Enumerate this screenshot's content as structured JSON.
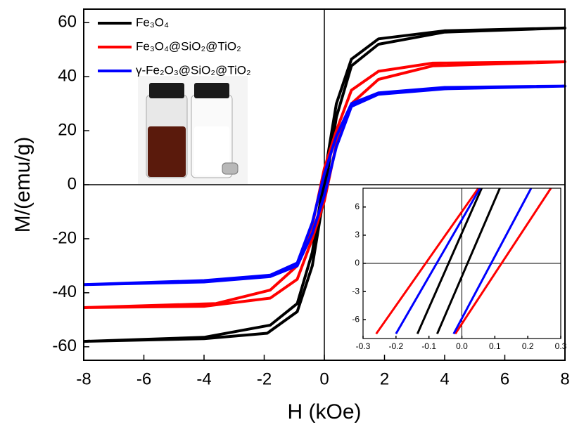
{
  "chart_data": [
    {
      "type": "line",
      "x_label": "H (kOe)",
      "y_label": "M/(emu/g)",
      "xlim": [
        -8,
        8
      ],
      "ylim": [
        -65,
        65
      ],
      "xticks": [
        -8,
        -6,
        -4,
        -2,
        0,
        2,
        4,
        6,
        8
      ],
      "yticks": [
        -60,
        -40,
        -20,
        0,
        20,
        40,
        60
      ],
      "zero_lines": true,
      "legend": "upper left",
      "series": [
        {
          "name": "Fe₃O₄",
          "color": "#000000",
          "x": [
            -8,
            -4,
            -1.9,
            -0.9,
            -0.4,
            0,
            0.4,
            0.9,
            1.8,
            4,
            8,
            4,
            1.8,
            0.9,
            0.4,
            0,
            -0.4,
            -0.9,
            -1.8,
            -4,
            -8
          ],
          "values": [
            -58,
            -57,
            -55,
            -47,
            -30,
            -3,
            25,
            44,
            52,
            56.5,
            58,
            57,
            54,
            46.5,
            30,
            3,
            -25,
            -44,
            -52,
            -56.5,
            -58
          ]
        },
        {
          "name": "Fe₃O₄@SiO₂@TiO₂",
          "color": "#ff0000",
          "x": [
            -8,
            -4,
            -1.8,
            -0.9,
            -0.4,
            0,
            0.4,
            0.9,
            1.8,
            3.6,
            8,
            3.6,
            1.8,
            0.9,
            0.4,
            0,
            -0.4,
            -0.9,
            -1.8,
            -3.6,
            -8
          ],
          "values": [
            -45.5,
            -45,
            -42,
            -35,
            -20,
            -6,
            15,
            30,
            39,
            44,
            45.5,
            45,
            42,
            35,
            20,
            6,
            -15,
            -30,
            -39,
            -44,
            -45.5
          ]
        },
        {
          "name": "γ-Fe₂O₃@SiO₂@TiO₂",
          "color": "#0000ff",
          "x": [
            -8,
            -4,
            -1.8,
            -0.9,
            -0.4,
            0,
            0.4,
            0.9,
            1.8,
            4,
            8,
            4,
            1.8,
            0.9,
            0.4,
            0,
            -0.4,
            -0.9,
            -1.8,
            -4,
            -8
          ],
          "values": [
            -37,
            -36,
            -34,
            -30,
            -18,
            -4,
            14,
            29,
            33.5,
            35.5,
            36.5,
            36,
            34,
            30,
            18,
            4,
            -14,
            -29,
            -33.5,
            -35.5,
            -37
          ]
        }
      ]
    },
    {
      "type": "line",
      "xlim": [
        -0.3,
        0.3
      ],
      "ylim": [
        -8,
        8
      ],
      "xticks": [
        -0.3,
        -0.2,
        -0.1,
        {
          "value": 0,
          "label": "0.0"
        },
        0.1,
        0.2,
        0.3
      ],
      "yticks": [
        -6,
        -3,
        0,
        3,
        6
      ],
      "zero_lines": true,
      "series": [
        {
          "color": "#000000",
          "x": [
            -0.135,
            0.06,
            null,
            -0.075,
            0.115
          ],
          "values": [
            -7.5,
            8,
            null,
            -7.5,
            8
          ]
        },
        {
          "color": "#ff0000",
          "x": [
            -0.26,
            0.05,
            null,
            -0.02,
            0.27
          ],
          "values": [
            -7.5,
            8,
            null,
            -7.5,
            8
          ]
        },
        {
          "color": "#0000ff",
          "x": [
            -0.2,
            0.055,
            null,
            -0.025,
            0.21
          ],
          "values": [
            -7.5,
            8,
            null,
            -7.5,
            8
          ]
        }
      ]
    }
  ]
}
